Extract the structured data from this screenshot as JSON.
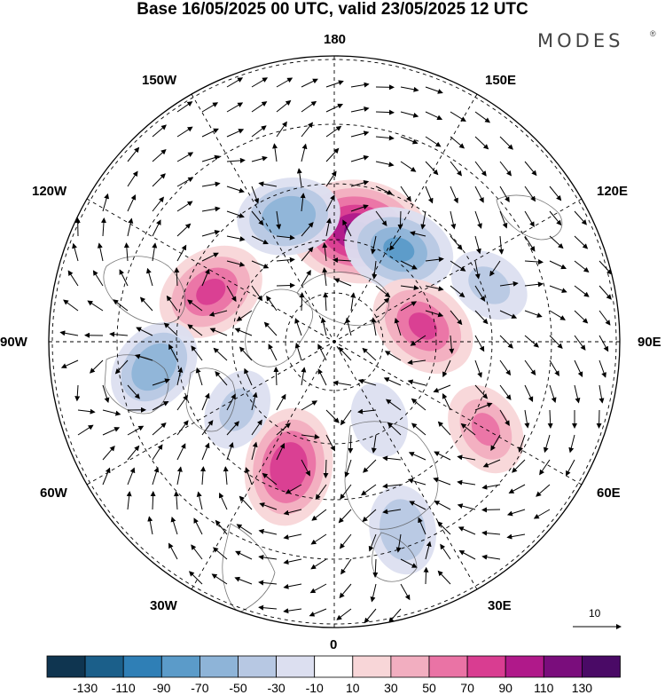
{
  "header": {
    "title": "Base 16/05/2025 00 UTC, valid 23/05/2025 12 UTC",
    "brand": "MODES",
    "brand_mark": "®"
  },
  "longitude_labels": {
    "n180": "180",
    "e150": "150E",
    "e120": "120E",
    "e90": "90E",
    "e60": "60E",
    "e30": "30E",
    "zero": "0",
    "w30": "30W",
    "w60": "60W",
    "w90": "90W",
    "w120": "120W",
    "w150": "150W"
  },
  "vector_scale": {
    "label": "10"
  },
  "colorbar": {
    "ticks": [
      "-130",
      "-110",
      "-90",
      "-70",
      "-50",
      "-30",
      "-10",
      "10",
      "30",
      "50",
      "70",
      "90",
      "110",
      "130"
    ],
    "colors": [
      "#0f3550",
      "#1b5f8a",
      "#2f7fb6",
      "#5b9bc9",
      "#8eb4d8",
      "#b7c8e3",
      "#dcdff0",
      "#ffffff",
      "#f8d6d8",
      "#f2aec0",
      "#ea73a5",
      "#d93d91",
      "#b0198a",
      "#7a0d7c",
      "#4a0a66"
    ]
  },
  "map": {
    "projection": "north polar stereographic",
    "anomalies": [
      {
        "lon": 168,
        "lat": 47,
        "value": 110
      },
      {
        "lon": -160,
        "lat": 40,
        "value": -60
      },
      {
        "lon": 145,
        "lat": 47,
        "value": -70
      },
      {
        "lon": -112,
        "lat": 40,
        "value": 70
      },
      {
        "lon": -82,
        "lat": 25,
        "value": -55
      },
      {
        "lon": 100,
        "lat": 55,
        "value": 70
      },
      {
        "lon": -20,
        "lat": 40,
        "value": 80
      },
      {
        "lon": 110,
        "lat": 30,
        "value": -30
      },
      {
        "lon": 60,
        "lat": 27,
        "value": 45
      },
      {
        "lon": 20,
        "lat": 20,
        "value": -40
      },
      {
        "lon": -55,
        "lat": 45,
        "value": -30
      },
      {
        "lon": 30,
        "lat": 55,
        "value": -20
      }
    ]
  }
}
